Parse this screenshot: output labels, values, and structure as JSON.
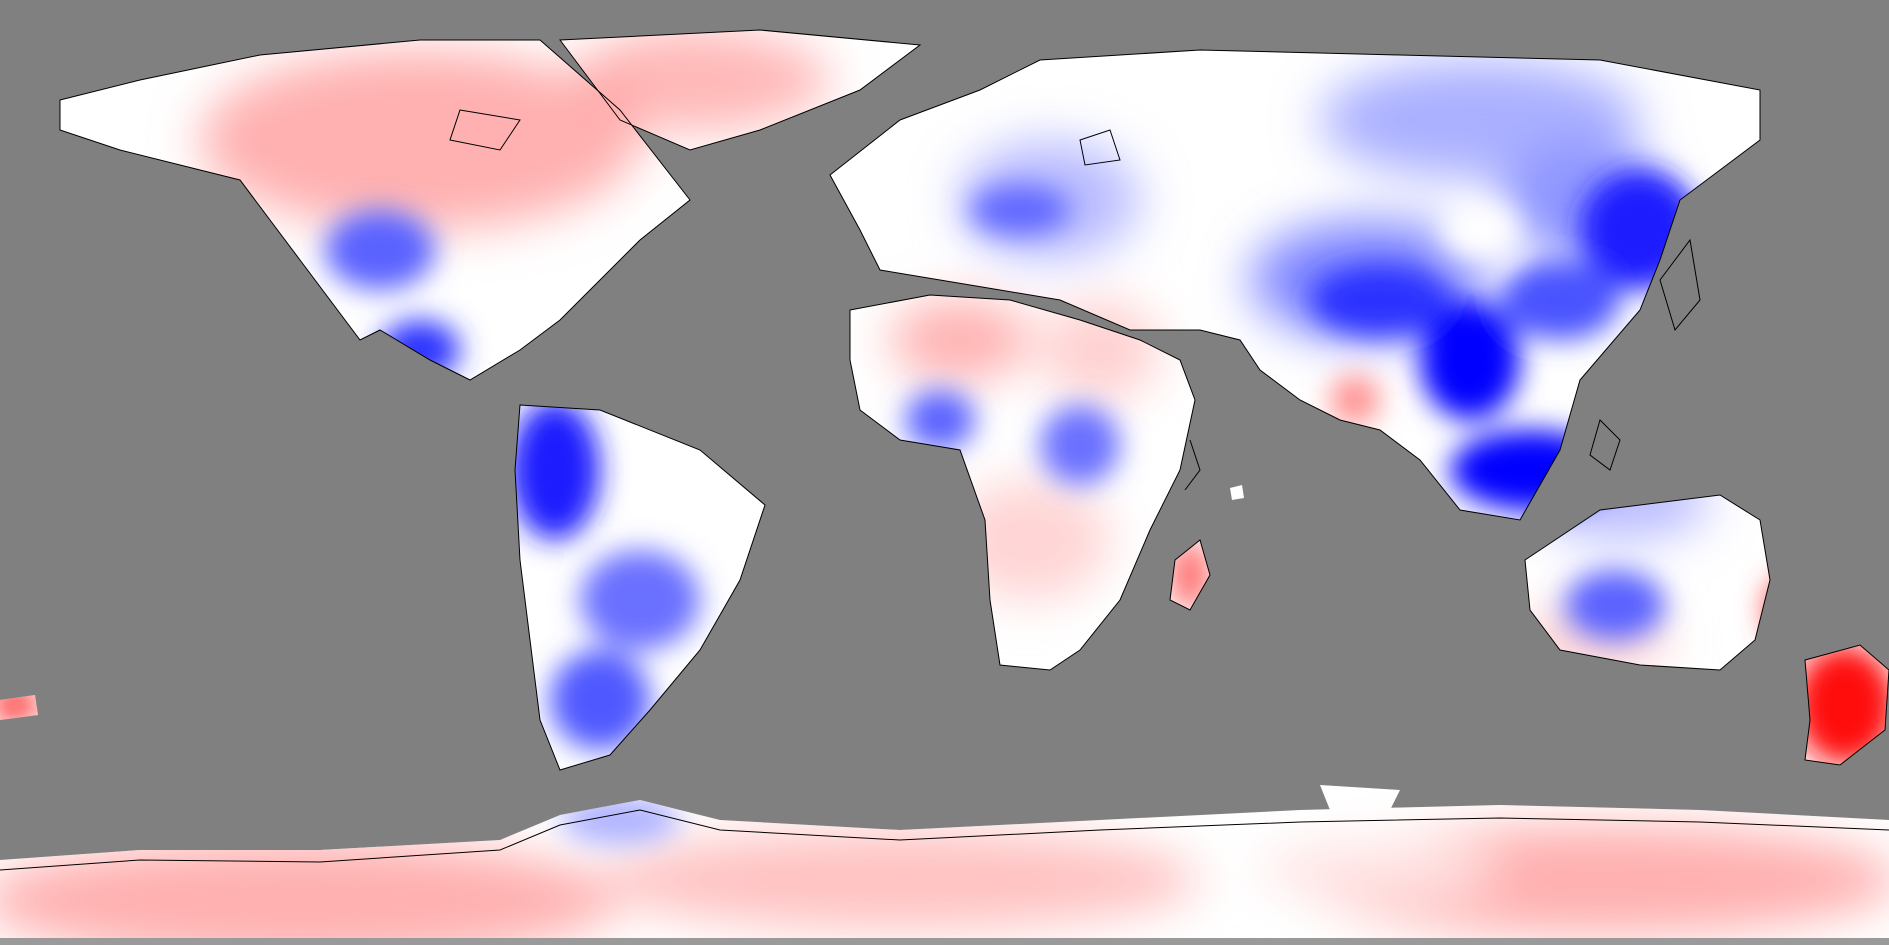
{
  "map": {
    "projection": "equirectangular",
    "ocean_color": "#808080",
    "palette": {
      "strong_positive": "#ff0000",
      "moderate_positive": "#ff8a8a",
      "weak_positive": "#ffd4d4",
      "neutral": "#ffffff",
      "weak_negative": "#d4d8ff",
      "moderate_negative": "#8a90ff",
      "strong_negative": "#0000ff"
    },
    "coastline_color": "#000000"
  }
}
